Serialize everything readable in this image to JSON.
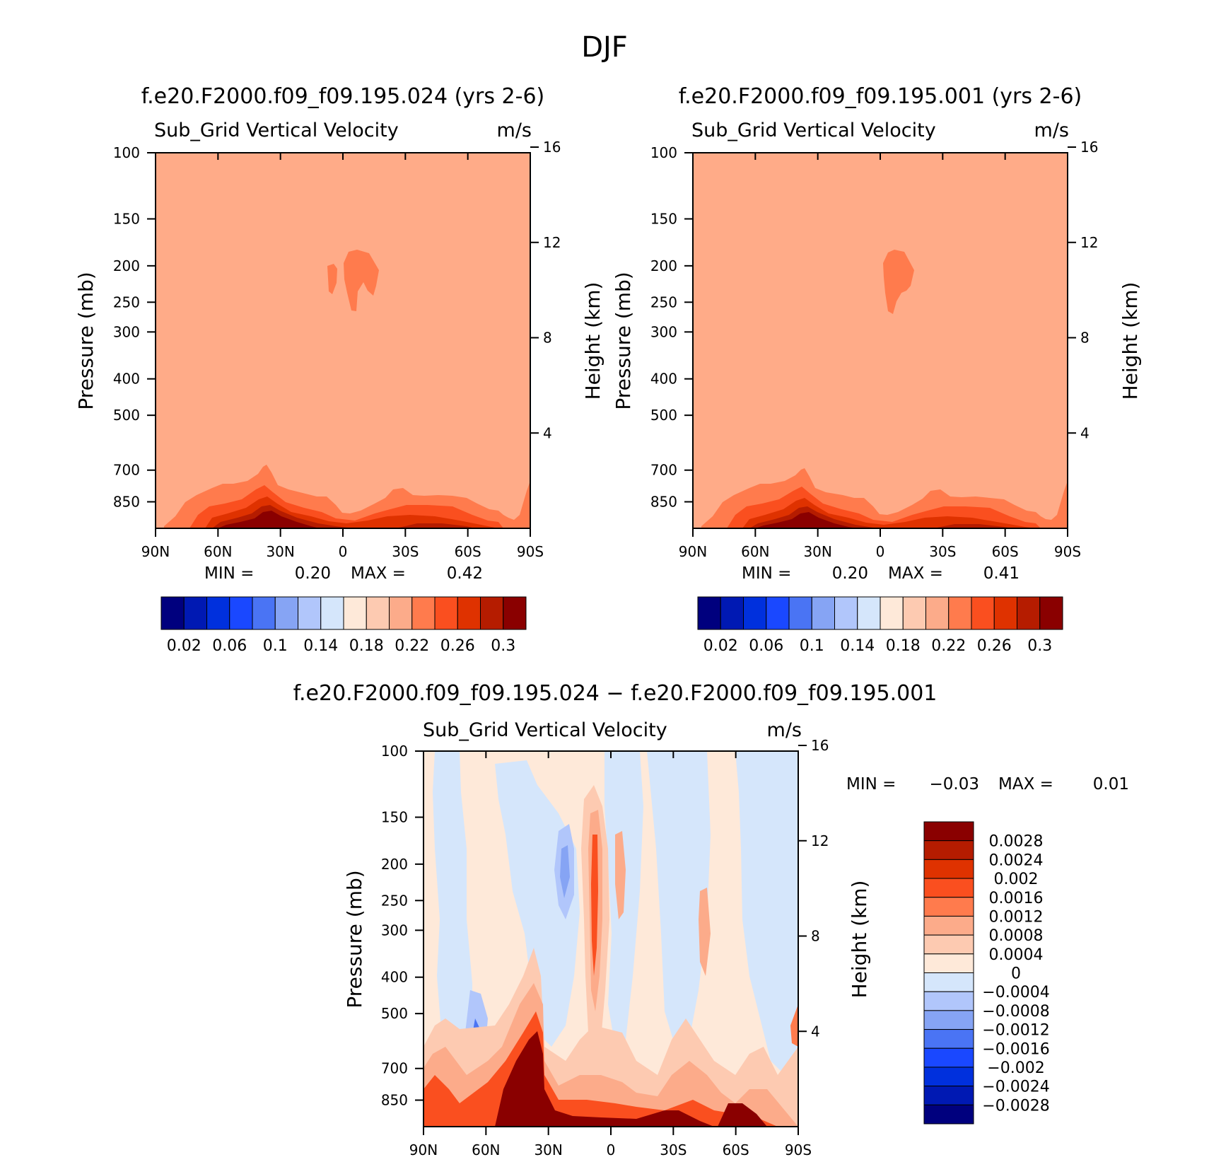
{
  "figure": {
    "title": "DJF"
  },
  "colors": {
    "background": "#ffb09a",
    "palette": [
      "#00007e",
      "#0019b3",
      "#0030dd",
      "#1a48ff",
      "#4a74f4",
      "#86a4f4",
      "#b1c6fb",
      "#d5e6fb",
      "#fee9d9",
      "#fdcab1",
      "#fcab8a",
      "#ff7b4d",
      "#fa4f1f",
      "#df3200",
      "#b51c00",
      "#8a0000"
    ]
  },
  "chart_data": [
    {
      "type": "heatmap",
      "name": "panel-a",
      "title": "f.e20.F2000.f09_f09.195.024 (yrs 2-6)",
      "variable": "Sub_Grid Vertical Velocity",
      "units": "m/s",
      "xlabel": "",
      "ylabel": "Pressure (mb)",
      "y2label": "Height (km)",
      "x_ticks": [
        "90N",
        "60N",
        "30N",
        "0",
        "30S",
        "60S",
        "90S"
      ],
      "xlim": [
        90,
        -90
      ],
      "y_ticks": [
        100,
        150,
        200,
        250,
        300,
        400,
        500,
        700,
        850
      ],
      "ylim": [
        100,
        1000
      ],
      "y_scale": "log",
      "y2_ticks": [
        16,
        12,
        8,
        4
      ],
      "min": "0.20",
      "max": "0.42",
      "colorbar_labels": [
        "0.02",
        "0.06",
        "0.1",
        "0.14",
        "0.18",
        "0.22",
        "0.26",
        "0.3"
      ],
      "colorbar_levels": [
        0.02,
        0.04,
        0.06,
        0.08,
        0.1,
        0.12,
        0.14,
        0.16,
        0.18,
        0.2,
        0.22,
        0.24,
        0.26,
        0.28,
        0.3
      ],
      "background_value": 0.21
    },
    {
      "type": "heatmap",
      "name": "panel-b",
      "title": "f.e20.F2000.f09_f09.195.001 (yrs 2-6)",
      "variable": "Sub_Grid Vertical Velocity",
      "units": "m/s",
      "xlabel": "",
      "ylabel": "Pressure (mb)",
      "y2label": "Height (km)",
      "x_ticks": [
        "90N",
        "60N",
        "30N",
        "0",
        "30S",
        "60S",
        "90S"
      ],
      "xlim": [
        90,
        -90
      ],
      "y_ticks": [
        100,
        150,
        200,
        250,
        300,
        400,
        500,
        700,
        850
      ],
      "ylim": [
        100,
        1000
      ],
      "y_scale": "log",
      "y2_ticks": [
        16,
        12,
        8,
        4
      ],
      "min": "0.20",
      "max": "0.41",
      "colorbar_labels": [
        "0.02",
        "0.06",
        "0.1",
        "0.14",
        "0.18",
        "0.22",
        "0.26",
        "0.3"
      ],
      "colorbar_levels": [
        0.02,
        0.04,
        0.06,
        0.08,
        0.1,
        0.12,
        0.14,
        0.16,
        0.18,
        0.2,
        0.22,
        0.24,
        0.26,
        0.28,
        0.3
      ],
      "background_value": 0.21
    },
    {
      "type": "heatmap",
      "name": "panel-diff",
      "title": "f.e20.F2000.f09_f09.195.024 − f.e20.F2000.f09_f09.195.001",
      "variable": "Sub_Grid Vertical Velocity",
      "units": "m/s",
      "xlabel": "",
      "ylabel": "Pressure (mb)",
      "y2label": "Height (km)",
      "x_ticks": [
        "90N",
        "60N",
        "30N",
        "0",
        "30S",
        "60S",
        "90S"
      ],
      "xlim": [
        90,
        -90
      ],
      "y_ticks": [
        100,
        150,
        200,
        250,
        300,
        400,
        500,
        700,
        850
      ],
      "ylim": [
        100,
        1000
      ],
      "y_scale": "log",
      "y2_ticks": [
        16,
        12,
        8,
        4
      ],
      "min": "−0.03",
      "max": "0.01",
      "colorbar_labels": [
        "0.0028",
        "0.0024",
        "0.002",
        "0.0016",
        "0.0012",
        "0.0008",
        "0.0004",
        "0",
        "−0.0004",
        "−0.0008",
        "−0.0012",
        "−0.0016",
        "−0.002",
        "−0.0024",
        "−0.0028"
      ]
    }
  ],
  "labels": {
    "min": "MIN =",
    "max": "MAX ="
  }
}
